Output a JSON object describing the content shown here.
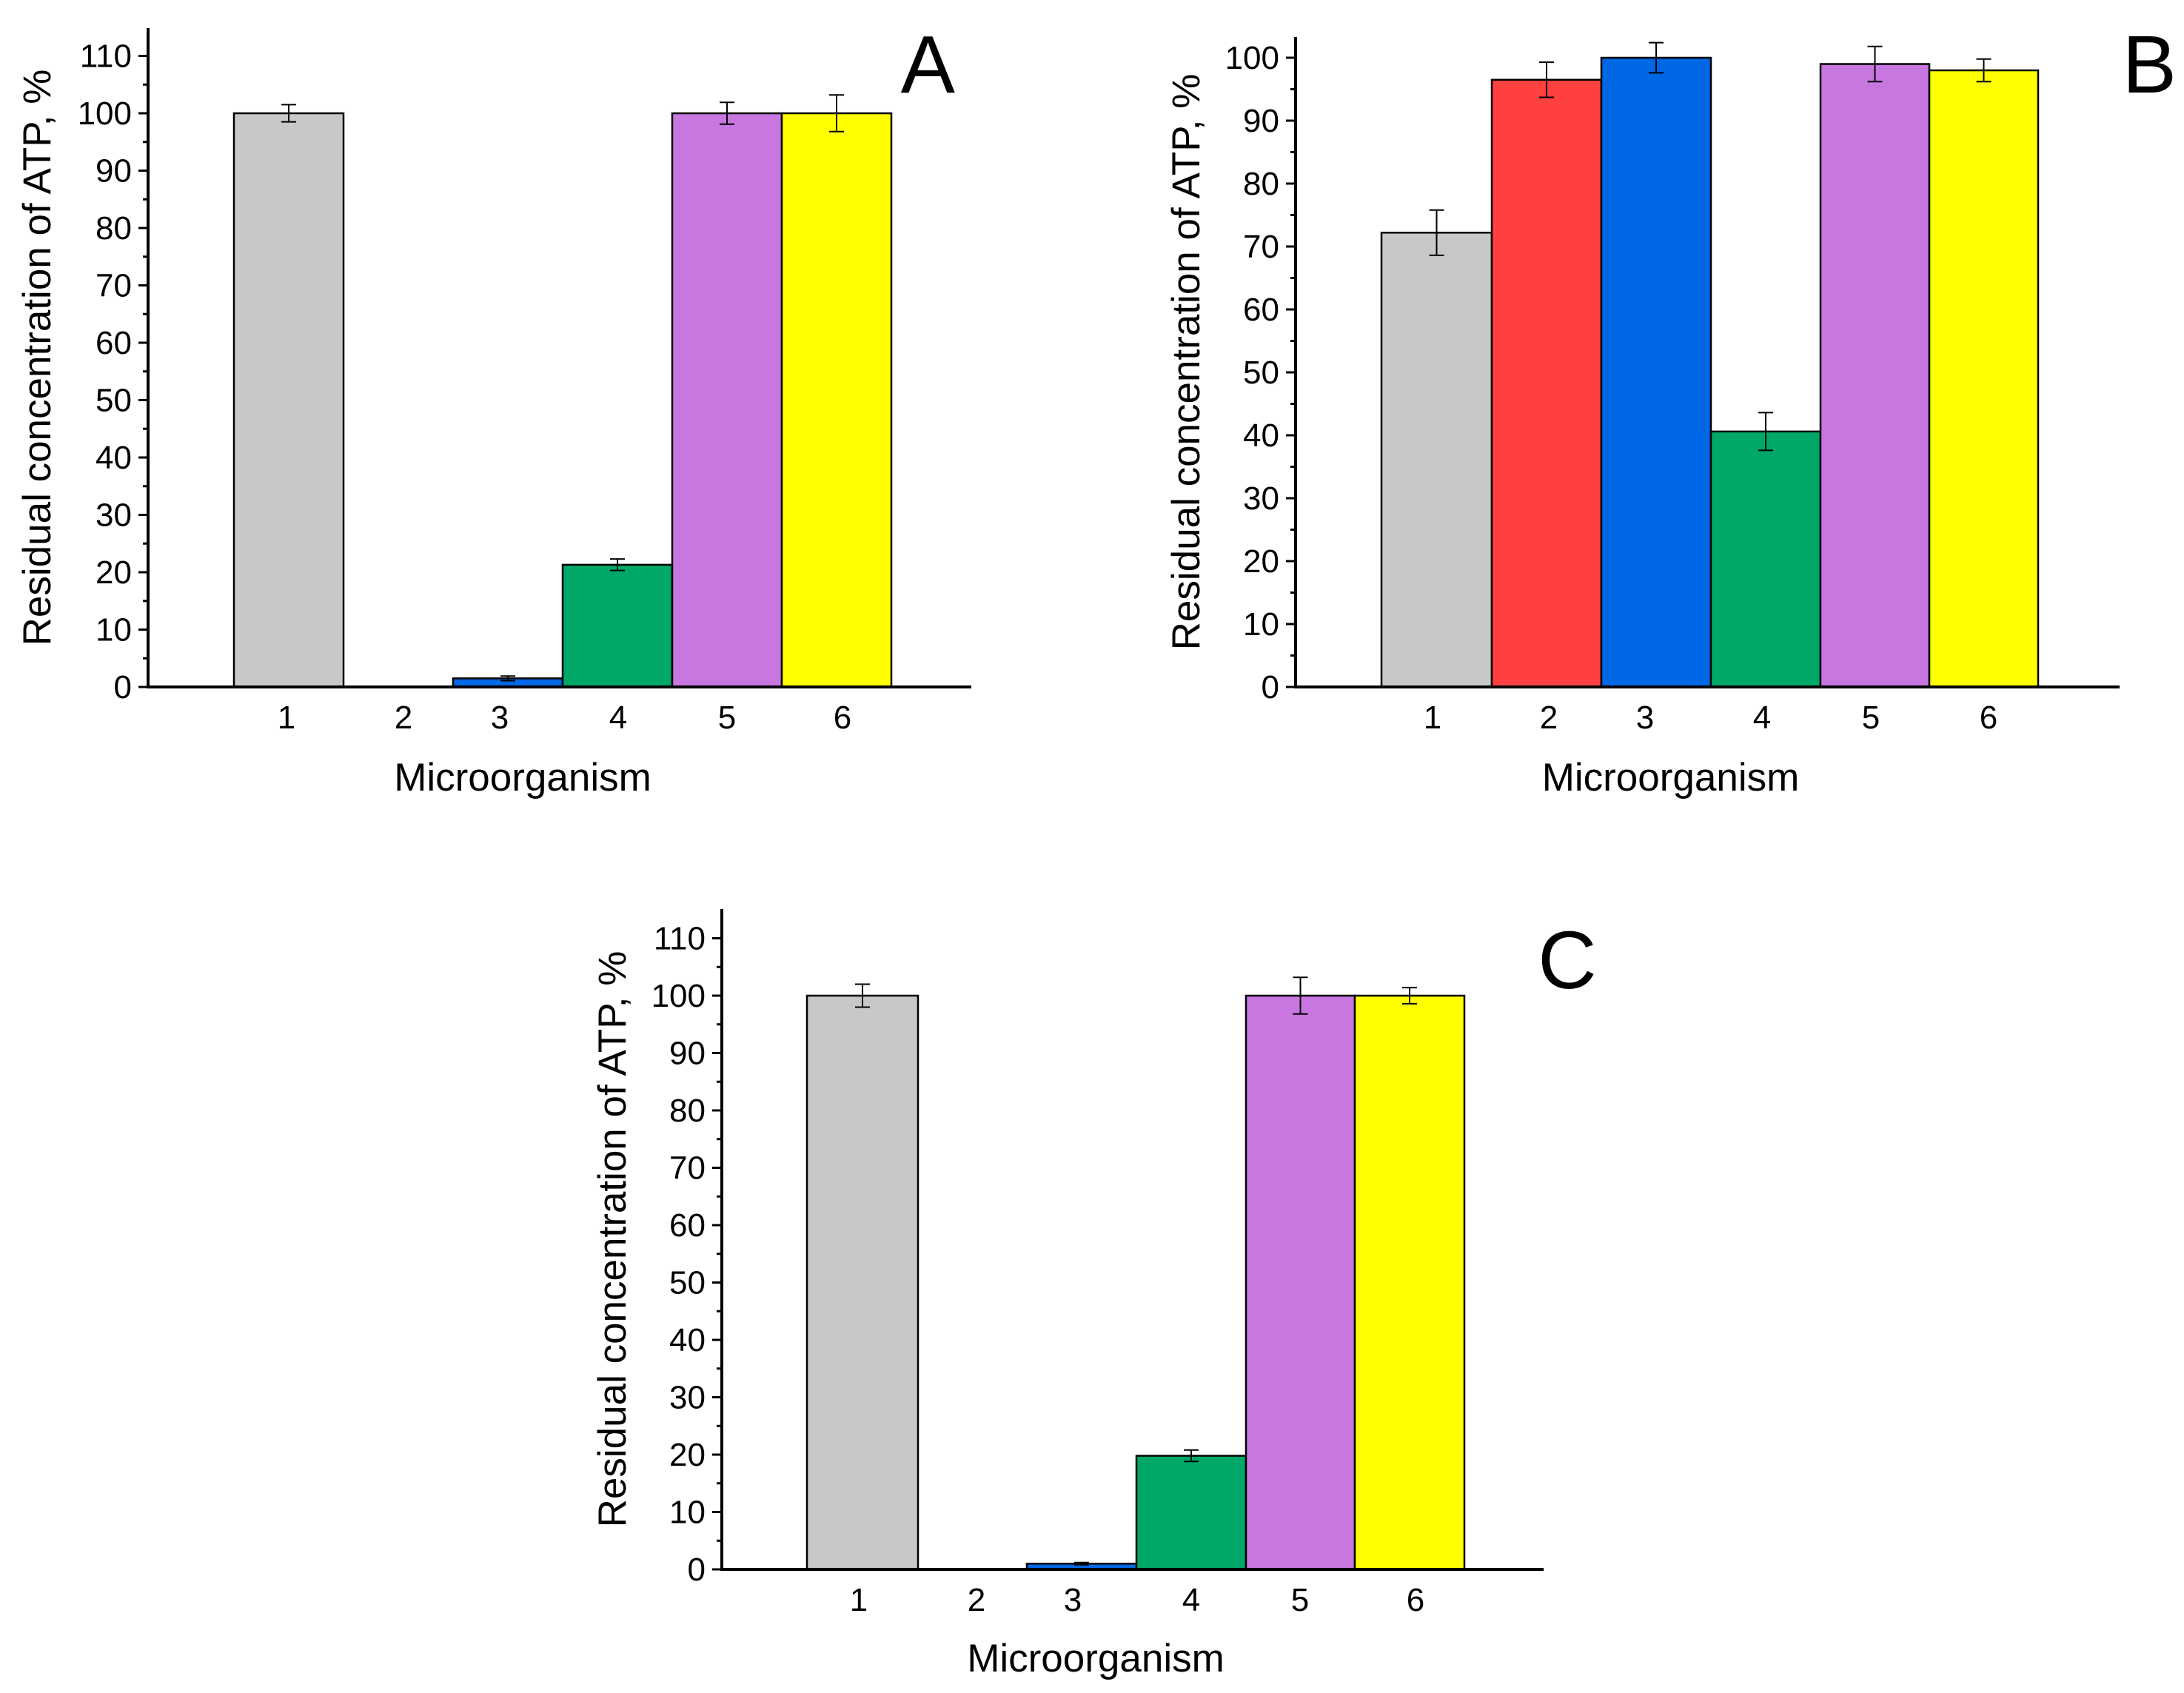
{
  "chart_data": [
    {
      "type": "bar",
      "panel_label": "A",
      "categories": [
        "1",
        "2",
        "3",
        "4",
        "5",
        "6"
      ],
      "values": [
        100,
        0,
        1.5,
        21.3,
        100,
        100
      ],
      "errors": [
        1.5,
        0,
        0.4,
        1.0,
        1.9,
        3.2
      ],
      "xlabel": "Microorganism",
      "ylabel": "Residual concentration of ATP, %",
      "ylim": [
        0,
        110
      ],
      "yticks": [
        "0",
        "10",
        "20",
        "30",
        "40",
        "50",
        "60",
        "70",
        "80",
        "90",
        "100",
        "110"
      ],
      "grid": false
    },
    {
      "type": "bar",
      "panel_label": "B",
      "categories": [
        "1",
        "2",
        "3",
        "4",
        "5",
        "6"
      ],
      "values": [
        72.2,
        96.5,
        100,
        40.6,
        99.0,
        98.0
      ],
      "errors": [
        3.6,
        2.8,
        2.4,
        3.0,
        2.8,
        1.8
      ],
      "xlabel": "Microorganism",
      "ylabel": "Residual concentration of ATP, %",
      "ylim": [
        0,
        100
      ],
      "yticks": [
        "0",
        "10",
        "20",
        "30",
        "40",
        "50",
        "60",
        "70",
        "80",
        "90",
        "100"
      ],
      "grid": false
    },
    {
      "type": "bar",
      "panel_label": "C",
      "categories": [
        "1",
        "2",
        "3",
        "4",
        "5",
        "6"
      ],
      "values": [
        100,
        0,
        1.0,
        19.8,
        100,
        100
      ],
      "errors": [
        2.0,
        0,
        0.2,
        1.0,
        3.2,
        1.4
      ],
      "xlabel": "Microorganism",
      "ylabel": "Residual concentration of ATP, %",
      "ylim": [
        0,
        110
      ],
      "yticks": [
        "0",
        "10",
        "20",
        "30",
        "40",
        "50",
        "60",
        "70",
        "80",
        "90",
        "100",
        "110"
      ],
      "grid": false
    }
  ],
  "colors": {
    "bar_1": "#c8c8c8",
    "bar_2": "#ff4040",
    "bar_3": "#0067e5",
    "bar_4": "#00a868",
    "bar_5": "#c876e0",
    "bar_6": "#ffff00",
    "axis": "#000000",
    "bar_edge": "#000000"
  }
}
